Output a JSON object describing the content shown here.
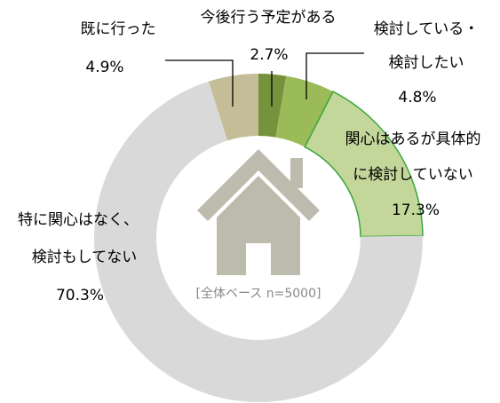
{
  "chart_data": {
    "type": "pie",
    "donut": true,
    "categories": [
      [
        "今後行う予定がある"
      ],
      [
        "検討している・",
        "検討したい"
      ],
      [
        "関心はあるが具体的",
        "に検討していない"
      ],
      [
        "特に関心はなく、",
        "検討もしてない"
      ],
      [
        "既に行った"
      ]
    ],
    "values": [
      2.7,
      4.8,
      17.3,
      70.3,
      4.9
    ],
    "value_labels": [
      "2.7%",
      "4.8%",
      "17.3%",
      "70.3%",
      "4.9%"
    ],
    "colors": [
      "#76923c",
      "#9bbb59",
      "#c4d79b",
      "#d9d9d9",
      "#c4bd97"
    ],
    "center_text": "[全体ベース n=5000]"
  }
}
